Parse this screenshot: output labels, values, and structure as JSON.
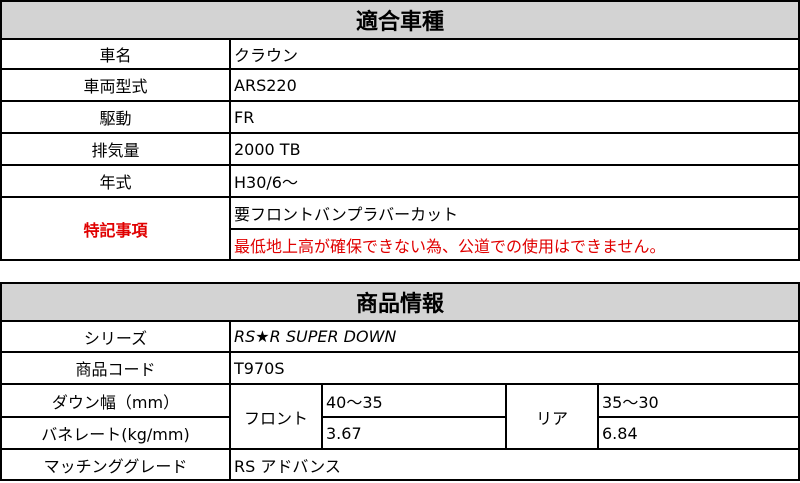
{
  "vehicle": {
    "title": "適合車種",
    "rows": [
      {
        "label": "車名",
        "value": "クラウン"
      },
      {
        "label": "車両型式",
        "value": "ARS220"
      },
      {
        "label": "駆動",
        "value": "FR"
      },
      {
        "label": "排気量",
        "value": "2000 TB"
      },
      {
        "label": "年式",
        "value": "H30/6〜"
      }
    ],
    "notes": {
      "label": "特記事項",
      "lines": [
        "要フロントバンプラバーカット",
        "最低地上高が確保できない為、公道での使用はできません。"
      ]
    },
    "colors": {
      "warning": "#e00000",
      "header_bg": "#d3d3d3"
    }
  },
  "product": {
    "title": "商品情報",
    "series": {
      "label": "シリーズ",
      "value": "RS★R SUPER DOWN"
    },
    "code": {
      "label": "商品コード",
      "value": "T970S"
    },
    "down": {
      "label": "ダウン幅（mm）",
      "front": "40〜35",
      "rear": "35〜30"
    },
    "spring": {
      "label": "バネレート(kg/mm)",
      "front": "3.67",
      "rear": "6.84"
    },
    "front_label": "フロント",
    "rear_label": "リア",
    "grade": {
      "label": "マッチンググレード",
      "value": "RS アドバンス"
    }
  }
}
